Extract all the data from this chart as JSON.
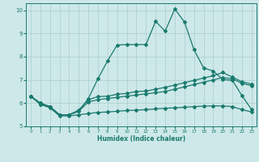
{
  "xlabel": "Humidex (Indice chaleur)",
  "xlim": [
    -0.5,
    23.5
  ],
  "ylim": [
    5,
    10.3
  ],
  "yticks": [
    5,
    6,
    7,
    8,
    9,
    10
  ],
  "xticks": [
    0,
    1,
    2,
    3,
    4,
    5,
    6,
    7,
    8,
    9,
    10,
    11,
    12,
    13,
    14,
    15,
    16,
    17,
    18,
    19,
    20,
    21,
    22,
    23
  ],
  "bg_color": "#cde8e8",
  "grid_color": "#aacece",
  "line_color": "#1a7a6e",
  "line_width": 0.9,
  "marker": "D",
  "marker_size": 2.0,
  "series": [
    {
      "x": [
        0,
        1,
        2,
        3,
        4,
        5,
        6,
        7,
        8,
        9,
        10,
        11,
        12,
        13,
        14,
        15,
        16,
        17,
        18,
        19,
        20,
        21,
        22,
        23
      ],
      "y": [
        6.3,
        5.95,
        5.8,
        5.45,
        5.45,
        5.5,
        5.55,
        5.6,
        5.62,
        5.65,
        5.68,
        5.7,
        5.72,
        5.75,
        5.78,
        5.8,
        5.82,
        5.85,
        5.87,
        5.88,
        5.88,
        5.85,
        5.72,
        5.62
      ]
    },
    {
      "x": [
        0,
        1,
        2,
        3,
        4,
        5,
        6,
        7,
        8,
        9,
        10,
        11,
        12,
        13,
        14,
        15,
        16,
        17,
        18,
        19,
        20,
        21,
        22,
        23
      ],
      "y": [
        6.3,
        6.0,
        5.85,
        5.5,
        5.5,
        5.65,
        6.05,
        6.15,
        6.2,
        6.25,
        6.3,
        6.35,
        6.4,
        6.45,
        6.5,
        6.6,
        6.7,
        6.8,
        6.9,
        7.0,
        7.1,
        7.05,
        6.85,
        6.75
      ]
    },
    {
      "x": [
        0,
        1,
        2,
        3,
        4,
        5,
        6,
        7,
        8,
        9,
        10,
        11,
        12,
        13,
        14,
        15,
        16,
        17,
        18,
        19,
        20,
        21,
        22,
        23
      ],
      "y": [
        6.3,
        6.0,
        5.85,
        5.5,
        5.5,
        5.7,
        6.15,
        6.28,
        6.3,
        6.38,
        6.42,
        6.5,
        6.52,
        6.6,
        6.68,
        6.78,
        6.88,
        6.98,
        7.08,
        7.18,
        7.32,
        7.12,
        6.92,
        6.82
      ]
    },
    {
      "x": [
        0,
        1,
        2,
        3,
        4,
        5,
        6,
        7,
        8,
        9,
        10,
        11,
        12,
        13,
        14,
        15,
        16,
        17,
        18,
        19,
        20,
        21,
        22,
        23
      ],
      "y": [
        6.3,
        5.95,
        5.85,
        5.5,
        5.5,
        5.65,
        6.2,
        7.05,
        7.82,
        8.5,
        8.52,
        8.52,
        8.52,
        9.52,
        9.1,
        10.05,
        9.5,
        8.3,
        7.52,
        7.38,
        7.02,
        6.98,
        6.32,
        5.72
      ]
    }
  ]
}
